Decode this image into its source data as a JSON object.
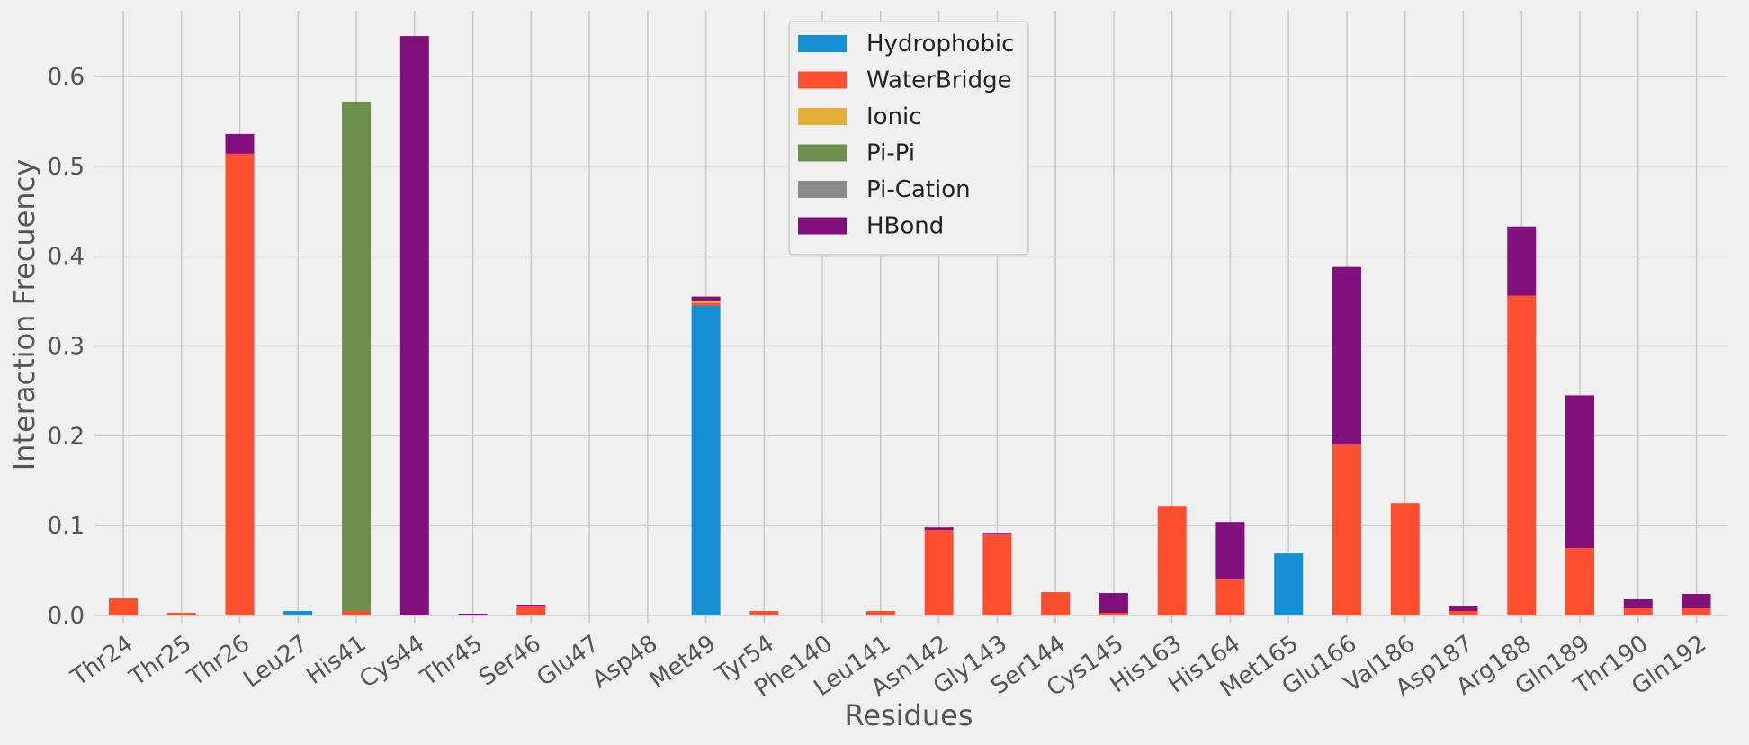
{
  "chart_data": {
    "type": "bar",
    "stacked": true,
    "xlabel": "Residues",
    "ylabel": "Interaction Frecuency",
    "ylim": [
      0,
      0.68
    ],
    "yticks": [
      0.0,
      0.1,
      0.2,
      0.3,
      0.4,
      0.5,
      0.6
    ],
    "ytick_labels": [
      "0.0",
      "0.1",
      "0.2",
      "0.3",
      "0.4",
      "0.5",
      "0.6"
    ],
    "grid": true,
    "legend_position": "top-center",
    "categories": [
      "Thr24",
      "Thr25",
      "Thr26",
      "Leu27",
      "His41",
      "Cys44",
      "Thr45",
      "Ser46",
      "Glu47",
      "Asp48",
      "Met49",
      "Tyr54",
      "Phe140",
      "Leu141",
      "Asn142",
      "Gly143",
      "Ser144",
      "Cys145",
      "His163",
      "His164",
      "Met165",
      "Glu166",
      "Val186",
      "Asp187",
      "Arg188",
      "Gln189",
      "Thr190",
      "Gln192"
    ],
    "series": [
      {
        "name": "Hydrophobic",
        "color": "#178fd5",
        "values": [
          0,
          0,
          0,
          0.005,
          0,
          0,
          0,
          0,
          0,
          0,
          0.345,
          0,
          0,
          0,
          0,
          0,
          0,
          0,
          0,
          0,
          0.069,
          0,
          0,
          0,
          0,
          0,
          0,
          0
        ]
      },
      {
        "name": "WaterBridge",
        "color": "#fc4f30",
        "values": [
          0.019,
          0.003,
          0.514,
          0,
          0.005,
          0,
          0,
          0.01,
          0,
          0,
          0.003,
          0.005,
          0,
          0.005,
          0.095,
          0.09,
          0.026,
          0.003,
          0.122,
          0.04,
          0,
          0.19,
          0.125,
          0.005,
          0.356,
          0.075,
          0.008,
          0.008
        ]
      },
      {
        "name": "Ionic",
        "color": "#e5ae38",
        "values": [
          0,
          0,
          0,
          0,
          0,
          0,
          0,
          0,
          0,
          0,
          0.002,
          0,
          0,
          0,
          0,
          0,
          0,
          0,
          0,
          0,
          0,
          0,
          0,
          0,
          0,
          0,
          0,
          0
        ]
      },
      {
        "name": "Pi-Pi",
        "color": "#6d904f",
        "values": [
          0,
          0,
          0,
          0,
          0.567,
          0,
          0,
          0,
          0,
          0,
          0,
          0,
          0,
          0,
          0,
          0,
          0,
          0,
          0,
          0,
          0,
          0,
          0,
          0,
          0,
          0,
          0,
          0
        ]
      },
      {
        "name": "Pi-Cation",
        "color": "#8b8b8b",
        "values": [
          0,
          0,
          0,
          0,
          0,
          0,
          0,
          0,
          0,
          0,
          0,
          0,
          0,
          0,
          0,
          0,
          0,
          0,
          0,
          0,
          0,
          0,
          0,
          0,
          0,
          0,
          0,
          0
        ]
      },
      {
        "name": "HBond",
        "color": "#810f7c",
        "values": [
          0,
          0,
          0.022,
          0,
          0,
          0.645,
          0.002,
          0.002,
          0,
          0,
          0.005,
          0,
          0,
          0,
          0.003,
          0.002,
          0,
          0.022,
          0,
          0.064,
          0,
          0.198,
          0,
          0.005,
          0.077,
          0.17,
          0.01,
          0.016
        ]
      }
    ]
  }
}
